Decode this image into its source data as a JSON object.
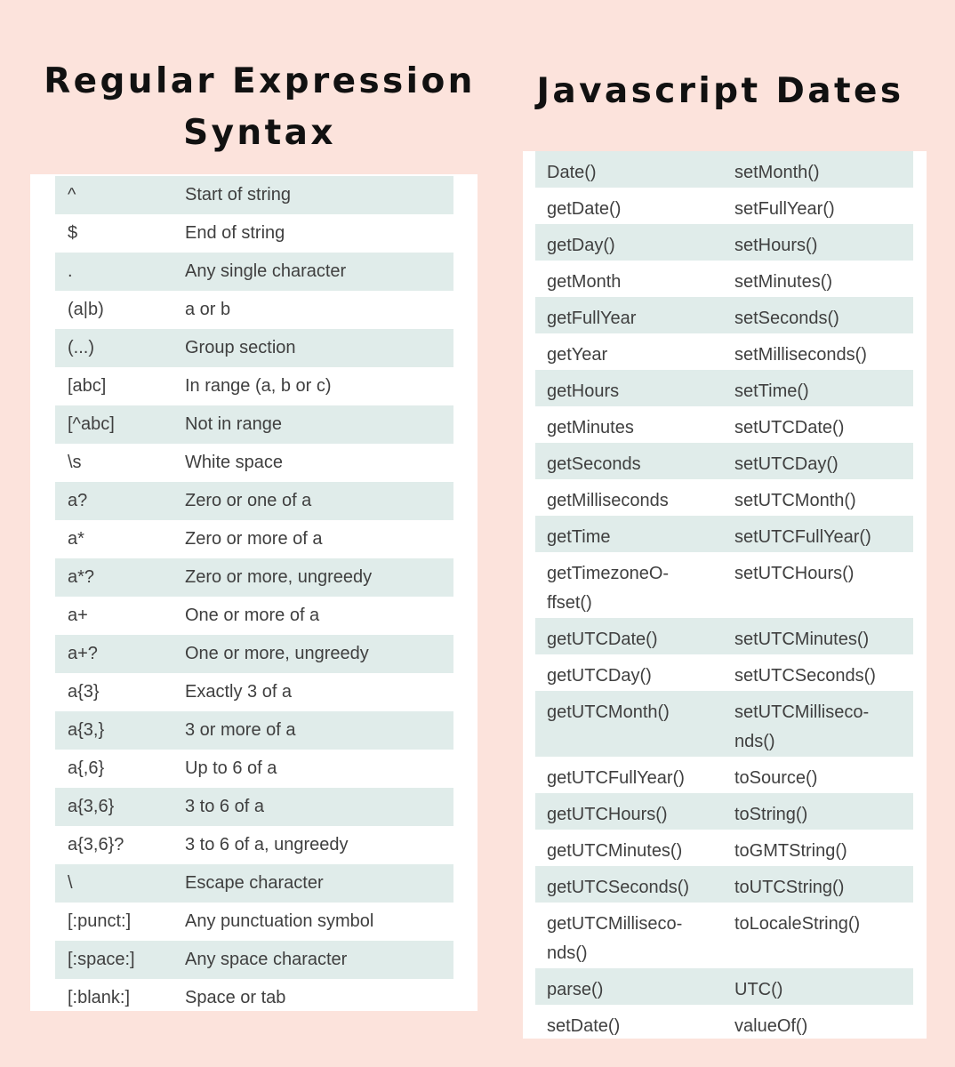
{
  "regex": {
    "title": "Regular Expression\nSyntax",
    "rows": [
      {
        "pattern": "^",
        "desc": "Start of string"
      },
      {
        "pattern": "$",
        "desc": "End of string"
      },
      {
        "pattern": ".",
        "desc": "Any single character"
      },
      {
        "pattern": "(a|b)",
        "desc": "a or b"
      },
      {
        "pattern": "(...)",
        "desc": "Group section"
      },
      {
        "pattern": "[abc]",
        "desc": "In range (a, b or c)"
      },
      {
        "pattern": "[^abc]",
        "desc": "Not in range"
      },
      {
        "pattern": "\\s",
        "desc": "White space"
      },
      {
        "pattern": "a?",
        "desc": "Zero or one of a"
      },
      {
        "pattern": "a*",
        "desc": "Zero or more of a"
      },
      {
        "pattern": "a*?",
        "desc": "Zero or more, ungreedy"
      },
      {
        "pattern": "a+",
        "desc": "One or more of a"
      },
      {
        "pattern": "a+?",
        "desc": "One or more, ungreedy"
      },
      {
        "pattern": "a{3}",
        "desc": "Exactly 3 of a"
      },
      {
        "pattern": "a{3,}",
        "desc": "3 or more of a"
      },
      {
        "pattern": "a{,6}",
        "desc": "Up to 6 of a"
      },
      {
        "pattern": "a{3,6}",
        "desc": "3 to 6 of a"
      },
      {
        "pattern": "a{3,6}?",
        "desc": "3 to 6 of a, ungreedy"
      },
      {
        "pattern": "\\",
        "desc": "Escape character"
      },
      {
        "pattern": "[:punct:]",
        "desc": "Any punctuation symbol"
      },
      {
        "pattern": "[:space:]",
        "desc": "Any space character"
      },
      {
        "pattern": "[:blank:]",
        "desc": "Space or tab"
      }
    ]
  },
  "dates": {
    "title": "Javascript Dates",
    "rows": [
      {
        "left": "Date()",
        "right": "setMonth()"
      },
      {
        "left": "getDate()",
        "right": "setFullYear()"
      },
      {
        "left": "getDay()",
        "right": "setHours()"
      },
      {
        "left": "getMonth",
        "right": "setMinutes()"
      },
      {
        "left": "getFullYear",
        "right": "setSeconds()"
      },
      {
        "left": "getYear",
        "right": "setMilliseconds()"
      },
      {
        "left": "getHours",
        "right": "setTime()"
      },
      {
        "left": "getMinutes",
        "right": "setUTCDate()"
      },
      {
        "left": "getSeconds",
        "right": "setUTCDay()"
      },
      {
        "left": "getMilliseconds",
        "right": "setUTCMonth()"
      },
      {
        "left": "getTime",
        "right": "setUTCFullYear()"
      },
      {
        "left": "getTimezoneO-\nffset()",
        "right": "setUTCHours()"
      },
      {
        "left": "getUTCDate()",
        "right": "setUTCMinutes()"
      },
      {
        "left": "getUTCDay()",
        "right": "setUTCSeconds()"
      },
      {
        "left": "getUTCMonth()",
        "right": "setUTCMilliseco-\nnds()"
      },
      {
        "left": "getUTCFullYear()",
        "right": "toSource()"
      },
      {
        "left": "getUTCHours()",
        "right": "toString()"
      },
      {
        "left": "getUTCMinutes()",
        "right": "toGMTString()"
      },
      {
        "left": "getUTCSeconds()",
        "right": "toUTCString()"
      },
      {
        "left": "getUTCMilliseco-\nnds()",
        "right": "toLocaleString()"
      },
      {
        "left": "parse()",
        "right": "UTC()"
      },
      {
        "left": "setDate()",
        "right": "valueOf()"
      }
    ]
  },
  "colors": {
    "background": "#fce3dc",
    "stripe": "#e0ecea",
    "panel": "#ffffff",
    "text": "#3f3f3f"
  }
}
